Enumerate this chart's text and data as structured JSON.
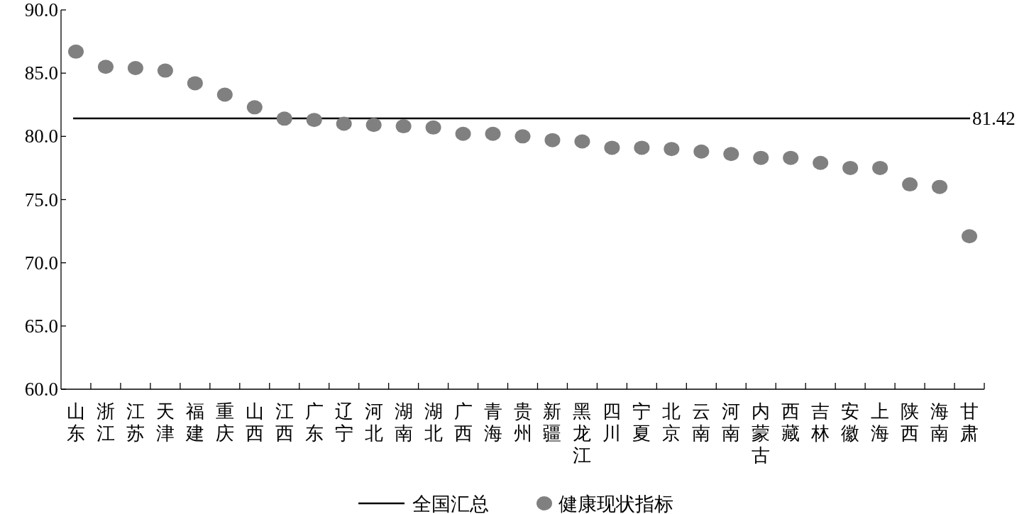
{
  "chart_data": {
    "type": "scatter",
    "categories": [
      "山东",
      "浙江",
      "江苏",
      "天津",
      "福建",
      "重庆",
      "山西",
      "江西",
      "广东",
      "辽宁",
      "河北",
      "湖南",
      "湖北",
      "广西",
      "青海",
      "贵州",
      "新疆",
      "黑龙江",
      "四川",
      "宁夏",
      "北京",
      "云南",
      "河南",
      "内蒙古",
      "西藏",
      "吉林",
      "安徽",
      "上海",
      "陕西",
      "海南",
      "甘肃"
    ],
    "series": [
      {
        "name": "健康现状指标",
        "color": "#808080",
        "values": [
          86.7,
          85.5,
          85.4,
          85.2,
          84.2,
          83.3,
          82.3,
          81.4,
          81.3,
          81.0,
          80.9,
          80.8,
          80.7,
          80.2,
          80.2,
          80.0,
          79.7,
          79.6,
          79.1,
          79.1,
          79.0,
          78.8,
          78.6,
          78.3,
          78.3,
          77.9,
          77.5,
          77.5,
          76.2,
          76.0,
          72.1
        ]
      }
    ],
    "ylim": [
      60,
      90
    ],
    "yticks": [
      {
        "value": 60,
        "label": "60.0"
      },
      {
        "value": 65,
        "label": "65.0"
      },
      {
        "value": 70,
        "label": "70.0"
      },
      {
        "value": 75,
        "label": "75.0"
      },
      {
        "value": 80,
        "label": "80.0"
      },
      {
        "value": 85,
        "label": "85.0"
      },
      {
        "value": 90,
        "label": "90.0"
      }
    ],
    "ref_lines": [
      {
        "axis": "y",
        "value": 81.42,
        "label": "全国汇总",
        "color": "#000000"
      }
    ],
    "annotations": [
      {
        "text": "81.42",
        "x": "甘肃",
        "y": 81.42
      }
    ],
    "marker": "circle",
    "legend": "bottom",
    "grid": false
  }
}
